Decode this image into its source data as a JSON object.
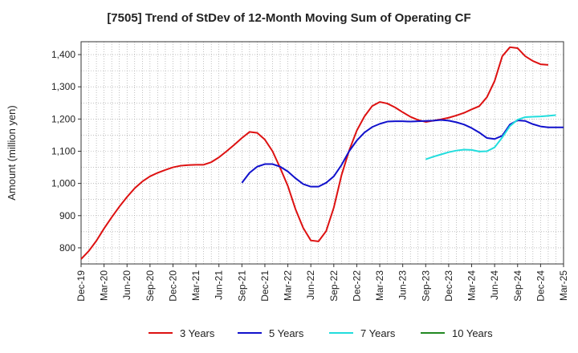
{
  "chart_data": {
    "type": "line",
    "title": "[7505]  Trend of StDev of 12-Month Moving Sum of Operating CF",
    "ylabel": "Amount (million yen)",
    "xlabel": "",
    "ylim": [
      750,
      1440
    ],
    "yticks": [
      800,
      900,
      1000,
      1100,
      1200,
      1300,
      1400
    ],
    "ytick_labels": [
      "800",
      "900",
      "1,000",
      "1,100",
      "1,200",
      "1,300",
      "1,400"
    ],
    "xticks": [
      "Dec-19",
      "Mar-20",
      "Jun-20",
      "Sep-20",
      "Dec-20",
      "Mar-21",
      "Jun-21",
      "Sep-21",
      "Dec-21",
      "Mar-22",
      "Jun-22",
      "Sep-22",
      "Dec-22",
      "Mar-23",
      "Jun-23",
      "Sep-23",
      "Dec-23",
      "Mar-24",
      "Jun-24",
      "Sep-24",
      "Dec-24",
      "Mar-25"
    ],
    "grid": true,
    "legend_position": "bottom",
    "series": [
      {
        "name": "3 Years",
        "color": "#dd1111",
        "start": "Dec-19",
        "values": [
          765,
          790,
          822,
          860,
          895,
          928,
          958,
          985,
          1006,
          1022,
          1033,
          1042,
          1050,
          1055,
          1057,
          1058,
          1058,
          1066,
          1081,
          1100,
          1120,
          1141,
          1160,
          1157,
          1136,
          1100,
          1048,
          992,
          920,
          862,
          823,
          820,
          852,
          925,
          1025,
          1102,
          1164,
          1208,
          1240,
          1253,
          1248,
          1236,
          1221,
          1207,
          1197,
          1191,
          1195,
          1199,
          1204,
          1211,
          1219,
          1230,
          1240,
          1268,
          1318,
          1395,
          1423,
          1420,
          1395,
          1380,
          1370,
          1368
        ]
      },
      {
        "name": "5 Years",
        "color": "#1111cc",
        "start": "Sep-21",
        "values": [
          1002,
          1033,
          1052,
          1060,
          1060,
          1052,
          1037,
          1016,
          998,
          990,
          990,
          1002,
          1022,
          1057,
          1100,
          1133,
          1158,
          1175,
          1185,
          1192,
          1193,
          1193,
          1192,
          1193,
          1194,
          1195,
          1197,
          1195,
          1190,
          1183,
          1172,
          1158,
          1141,
          1138,
          1148,
          1183,
          1196,
          1194,
          1184,
          1177,
          1174,
          1174,
          1174
        ]
      },
      {
        "name": "7 Years",
        "color": "#22dddd",
        "start": "Sep-23",
        "values": [
          1075,
          1083,
          1090,
          1097,
          1102,
          1105,
          1104,
          1099,
          1100,
          1112,
          1143,
          1178,
          1198,
          1206,
          1207,
          1208,
          1210,
          1212
        ]
      },
      {
        "name": "10 Years",
        "color": "#228822",
        "start": "Dec-24",
        "values": []
      }
    ]
  }
}
